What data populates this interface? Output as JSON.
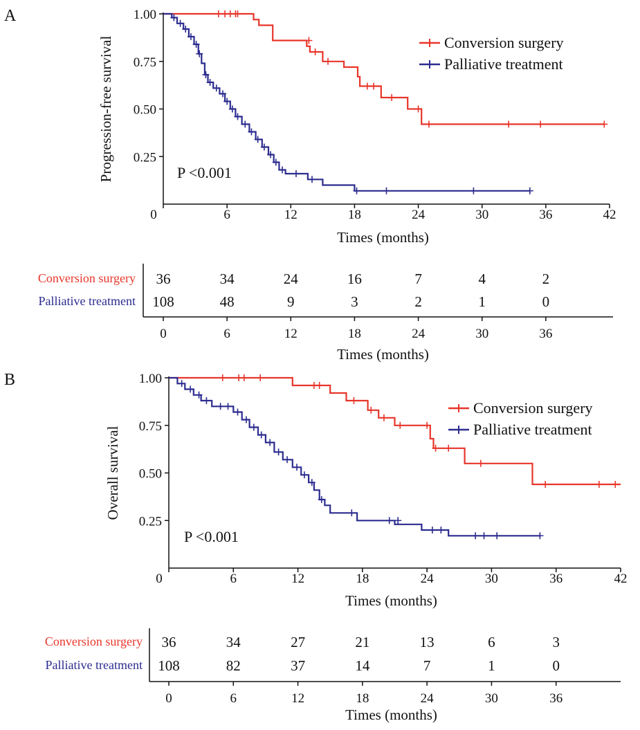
{
  "colors": {
    "conversion": "#e8352a",
    "palliative": "#2b2b8f",
    "axis": "#111111"
  },
  "chart_data": [
    {
      "type": "line",
      "panel": "A",
      "xlabel": "Times (months)",
      "ylabel": "Progression-free survival",
      "xlim": [
        0,
        42
      ],
      "ylim": [
        0,
        1
      ],
      "x_ticks": [
        "0",
        "6",
        "12",
        "18",
        "24",
        "30",
        "36",
        "42"
      ],
      "y_ticks": [
        "1.00",
        "0.75",
        "0.50",
        "0.25"
      ],
      "annotation": "P <0.001",
      "legend_position": "top-right",
      "series": [
        {
          "name": "Conversion surgery",
          "color_key": "conversion",
          "steps": [
            [
              0,
              1.0
            ],
            [
              8.5,
              0.97
            ],
            [
              9.0,
              0.94
            ],
            [
              10.3,
              0.86
            ],
            [
              13.5,
              0.83
            ],
            [
              13.8,
              0.8
            ],
            [
              15.0,
              0.75
            ],
            [
              17.0,
              0.72
            ],
            [
              18.3,
              0.67
            ],
            [
              18.5,
              0.62
            ],
            [
              20.5,
              0.56
            ],
            [
              23.0,
              0.5
            ],
            [
              24.3,
              0.42
            ],
            [
              41.5,
              0.42
            ]
          ],
          "censors": [
            [
              5.2,
              1.0
            ],
            [
              5.8,
              1.0
            ],
            [
              6.3,
              1.0
            ],
            [
              6.8,
              1.0
            ],
            [
              7.0,
              1.0
            ],
            [
              13.7,
              0.86
            ],
            [
              14.3,
              0.8
            ],
            [
              15.5,
              0.75
            ],
            [
              19.2,
              0.62
            ],
            [
              19.8,
              0.62
            ],
            [
              21.5,
              0.56
            ],
            [
              24.0,
              0.5
            ],
            [
              25.0,
              0.42
            ],
            [
              32.5,
              0.42
            ],
            [
              35.5,
              0.42
            ],
            [
              41.5,
              0.42
            ]
          ]
        },
        {
          "name": "Palliative treatment",
          "color_key": "palliative",
          "steps": [
            [
              0,
              1.0
            ],
            [
              0.8,
              0.98
            ],
            [
              1.3,
              0.95
            ],
            [
              1.9,
              0.92
            ],
            [
              2.4,
              0.88
            ],
            [
              2.9,
              0.84
            ],
            [
              3.3,
              0.79
            ],
            [
              3.6,
              0.74
            ],
            [
              3.9,
              0.68
            ],
            [
              4.2,
              0.64
            ],
            [
              4.7,
              0.61
            ],
            [
              5.3,
              0.58
            ],
            [
              5.8,
              0.54
            ],
            [
              6.3,
              0.5
            ],
            [
              6.8,
              0.46
            ],
            [
              7.4,
              0.42
            ],
            [
              8.1,
              0.38
            ],
            [
              8.7,
              0.34
            ],
            [
              9.3,
              0.3
            ],
            [
              9.9,
              0.26
            ],
            [
              10.4,
              0.22
            ],
            [
              10.9,
              0.18
            ],
            [
              11.5,
              0.16
            ],
            [
              13.6,
              0.13
            ],
            [
              15.0,
              0.1
            ],
            [
              18.0,
              0.07
            ],
            [
              34.5,
              0.07
            ]
          ],
          "censors": [
            [
              1.0,
              0.98
            ],
            [
              1.6,
              0.95
            ],
            [
              2.1,
              0.92
            ],
            [
              2.6,
              0.88
            ],
            [
              3.1,
              0.84
            ],
            [
              3.4,
              0.79
            ],
            [
              4.0,
              0.68
            ],
            [
              4.4,
              0.64
            ],
            [
              5.0,
              0.61
            ],
            [
              5.6,
              0.58
            ],
            [
              6.0,
              0.54
            ],
            [
              6.5,
              0.5
            ],
            [
              7.0,
              0.46
            ],
            [
              7.7,
              0.42
            ],
            [
              8.3,
              0.38
            ],
            [
              8.9,
              0.34
            ],
            [
              9.5,
              0.3
            ],
            [
              10.1,
              0.26
            ],
            [
              10.6,
              0.22
            ],
            [
              11.2,
              0.18
            ],
            [
              12.5,
              0.16
            ],
            [
              14.0,
              0.13
            ],
            [
              18.2,
              0.07
            ],
            [
              21.0,
              0.07
            ],
            [
              29.2,
              0.07
            ],
            [
              34.5,
              0.07
            ]
          ]
        }
      ]
    },
    {
      "type": "line",
      "panel": "B",
      "xlabel": "Times (months)",
      "ylabel": "Overall survival",
      "xlim": [
        0,
        42
      ],
      "ylim": [
        0,
        1
      ],
      "x_ticks": [
        "0",
        "6",
        "12",
        "18",
        "24",
        "30",
        "36",
        "42"
      ],
      "y_ticks": [
        "1.00",
        "0.75",
        "0.50",
        "0.25"
      ],
      "annotation": "P <0.001",
      "legend_position": "top-right",
      "series": [
        {
          "name": "Conversion surgery",
          "color_key": "conversion",
          "steps": [
            [
              0,
              1.0
            ],
            [
              11.5,
              0.96
            ],
            [
              15.0,
              0.92
            ],
            [
              16.5,
              0.88
            ],
            [
              18.5,
              0.83
            ],
            [
              19.5,
              0.79
            ],
            [
              21.0,
              0.75
            ],
            [
              24.3,
              0.68
            ],
            [
              24.6,
              0.63
            ],
            [
              27.5,
              0.55
            ],
            [
              28.8,
              0.55
            ],
            [
              33.8,
              0.44
            ],
            [
              42.0,
              0.44
            ]
          ],
          "censors": [
            [
              5.0,
              1.0
            ],
            [
              6.5,
              1.0
            ],
            [
              7.0,
              1.0
            ],
            [
              8.5,
              1.0
            ],
            [
              13.5,
              0.96
            ],
            [
              14.0,
              0.96
            ],
            [
              17.2,
              0.88
            ],
            [
              18.8,
              0.83
            ],
            [
              20.0,
              0.79
            ],
            [
              21.5,
              0.75
            ],
            [
              24.0,
              0.75
            ],
            [
              24.8,
              0.63
            ],
            [
              26.0,
              0.63
            ],
            [
              29.0,
              0.55
            ],
            [
              35.0,
              0.44
            ],
            [
              40.0,
              0.44
            ],
            [
              41.5,
              0.44
            ]
          ]
        },
        {
          "name": "Palliative treatment",
          "color_key": "palliative",
          "steps": [
            [
              0,
              1.0
            ],
            [
              0.8,
              0.97
            ],
            [
              1.5,
              0.94
            ],
            [
              2.3,
              0.91
            ],
            [
              3.0,
              0.88
            ],
            [
              4.0,
              0.85
            ],
            [
              6.0,
              0.82
            ],
            [
              6.8,
              0.78
            ],
            [
              7.5,
              0.74
            ],
            [
              8.3,
              0.7
            ],
            [
              9.0,
              0.66
            ],
            [
              9.8,
              0.61
            ],
            [
              10.6,
              0.57
            ],
            [
              11.5,
              0.53
            ],
            [
              12.3,
              0.49
            ],
            [
              13.0,
              0.45
            ],
            [
              13.5,
              0.41
            ],
            [
              14.0,
              0.36
            ],
            [
              14.5,
              0.33
            ],
            [
              15.0,
              0.29
            ],
            [
              17.5,
              0.25
            ],
            [
              21.0,
              0.23
            ],
            [
              23.5,
              0.2
            ],
            [
              26.0,
              0.17
            ],
            [
              34.5,
              0.17
            ]
          ],
          "censors": [
            [
              1.2,
              0.97
            ],
            [
              2.0,
              0.94
            ],
            [
              2.8,
              0.91
            ],
            [
              3.5,
              0.88
            ],
            [
              4.8,
              0.85
            ],
            [
              5.5,
              0.85
            ],
            [
              6.4,
              0.82
            ],
            [
              7.2,
              0.78
            ],
            [
              7.9,
              0.74
            ],
            [
              8.6,
              0.7
            ],
            [
              9.4,
              0.66
            ],
            [
              10.2,
              0.61
            ],
            [
              11.0,
              0.57
            ],
            [
              11.9,
              0.53
            ],
            [
              12.6,
              0.49
            ],
            [
              13.3,
              0.45
            ],
            [
              14.2,
              0.36
            ],
            [
              17.0,
              0.29
            ],
            [
              20.5,
              0.25
            ],
            [
              21.3,
              0.25
            ],
            [
              24.5,
              0.2
            ],
            [
              25.3,
              0.2
            ],
            [
              28.5,
              0.17
            ],
            [
              29.3,
              0.17
            ],
            [
              30.5,
              0.17
            ],
            [
              34.5,
              0.17
            ]
          ]
        }
      ]
    }
  ],
  "risk_tables": [
    {
      "panel": "A",
      "times": [
        "0",
        "6",
        "12",
        "18",
        "24",
        "30",
        "36"
      ],
      "xlabel": "Times (months)",
      "rows": [
        {
          "label": "Conversion surgery",
          "color_key": "conversion",
          "counts": [
            "36",
            "34",
            "24",
            "16",
            "7",
            "4",
            "2"
          ]
        },
        {
          "label": "Palliative treatment",
          "color_key": "palliative",
          "counts": [
            "108",
            "48",
            "9",
            "3",
            "2",
            "1",
            "0"
          ]
        }
      ]
    },
    {
      "panel": "B",
      "times": [
        "0",
        "6",
        "12",
        "18",
        "24",
        "30",
        "36"
      ],
      "xlabel": "Times (months)",
      "rows": [
        {
          "label": "Conversion surgery",
          "color_key": "conversion",
          "counts": [
            "36",
            "34",
            "27",
            "21",
            "13",
            "6",
            "3"
          ]
        },
        {
          "label": "Palliative treatment",
          "color_key": "palliative",
          "counts": [
            "108",
            "82",
            "37",
            "14",
            "7",
            "1",
            "0"
          ]
        }
      ]
    }
  ]
}
